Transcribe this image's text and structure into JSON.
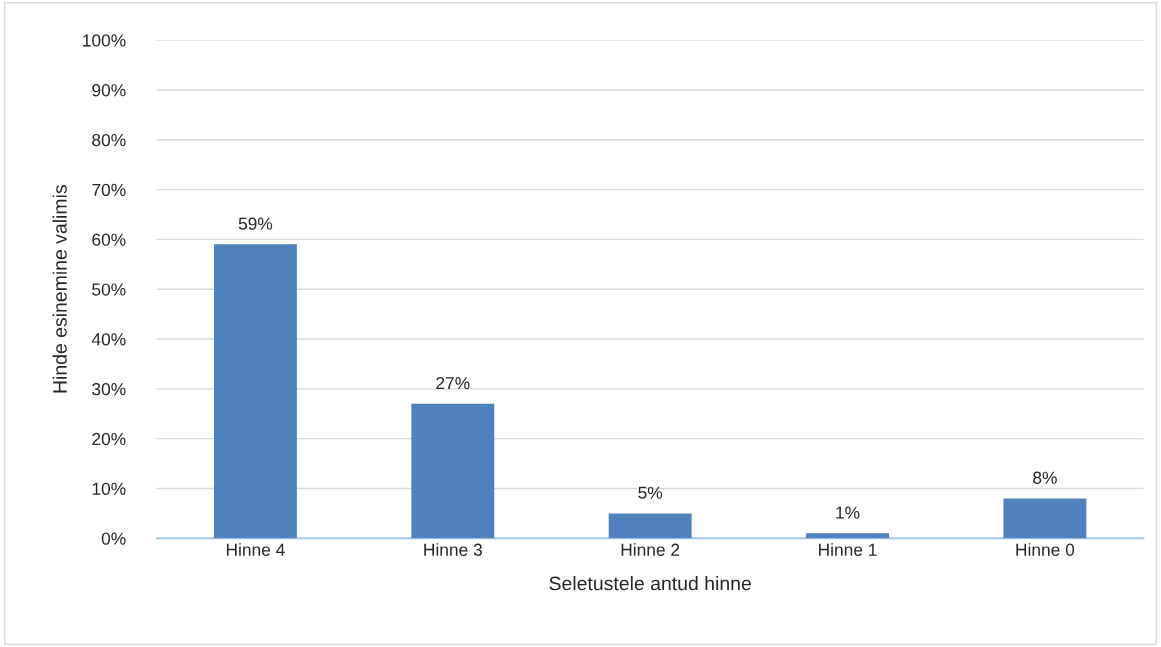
{
  "chart_data": {
    "type": "bar",
    "xlabel": "Seletustele antud hinne",
    "ylabel": "Hinde esinemine valimis",
    "categories": [
      "Hinne 4",
      "Hinne 3",
      "Hinne 2",
      "Hinne 1",
      "Hinne 0"
    ],
    "values": [
      59,
      27,
      5,
      1,
      8
    ],
    "color": "#4f81bd",
    "value_labels": [
      "59%",
      "27%",
      "5%",
      "1%",
      "8%"
    ],
    "ylim": [
      0,
      100
    ],
    "yticks": [
      {
        "value": 0,
        "label": "0%"
      },
      {
        "value": 10,
        "label": "10%"
      },
      {
        "value": 20,
        "label": "20%"
      },
      {
        "value": 30,
        "label": "30%"
      },
      {
        "value": 40,
        "label": "40%"
      },
      {
        "value": 50,
        "label": "50%"
      },
      {
        "value": 60,
        "label": "60%"
      },
      {
        "value": 70,
        "label": "70%"
      },
      {
        "value": 80,
        "label": "80%"
      },
      {
        "value": 90,
        "label": "90%"
      },
      {
        "value": 100,
        "label": "100%"
      }
    ],
    "grid": "y",
    "legend": false
  }
}
